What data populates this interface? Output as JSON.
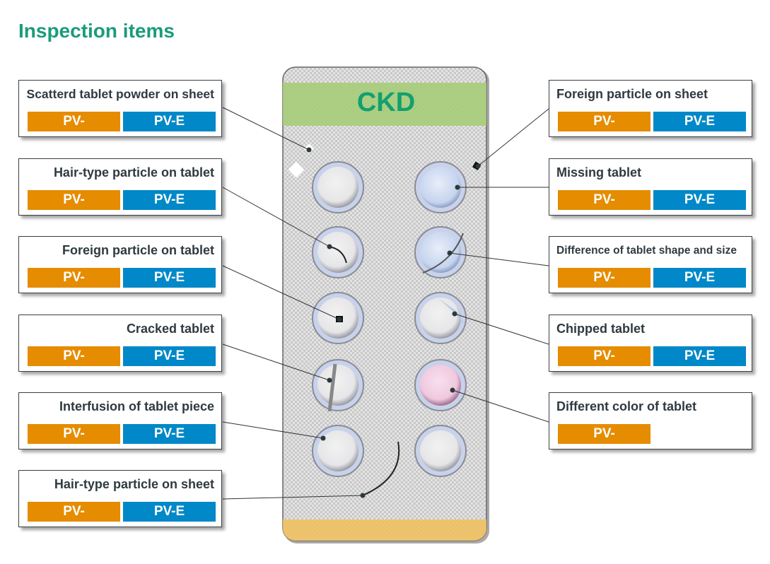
{
  "title": "Inspection items",
  "logo_text": "CKD",
  "colors": {
    "title": "#1a9b7c",
    "pv": "#e58c00",
    "pve": "#0088c8",
    "logo": "#12a070",
    "band": "#a6cc78",
    "bottom_band": "#f0c060",
    "pink_tablet": "#f3cfe2"
  },
  "left_items": [
    {
      "label": "Scatterd tablet powder on sheet",
      "tags": [
        "PV-",
        "PV-E"
      ]
    },
    {
      "label": "Hair-type particle on tablet",
      "tags": [
        "PV-",
        "PV-E"
      ]
    },
    {
      "label": "Foreign particle on tablet",
      "tags": [
        "PV-",
        "PV-E"
      ]
    },
    {
      "label": "Cracked tablet",
      "tags": [
        "PV-",
        "PV-E"
      ]
    },
    {
      "label": "Interfusion of tablet piece",
      "tags": [
        "PV-",
        "PV-E"
      ]
    },
    {
      "label": "Hair-type particle on sheet",
      "tags": [
        "PV-",
        "PV-E"
      ]
    }
  ],
  "right_items": [
    {
      "label": "Foreign particle on sheet",
      "tags": [
        "PV-",
        "PV-E"
      ]
    },
    {
      "label": "Missing tablet",
      "tags": [
        "PV-",
        "PV-E"
      ]
    },
    {
      "label": "Difference of tablet shape and size",
      "tags": [
        "PV-",
        "PV-E"
      ]
    },
    {
      "label": "Chipped tablet",
      "tags": [
        "PV-",
        "PV-E"
      ]
    },
    {
      "label": "Different color of tablet",
      "tags": [
        "PV-"
      ]
    }
  ]
}
